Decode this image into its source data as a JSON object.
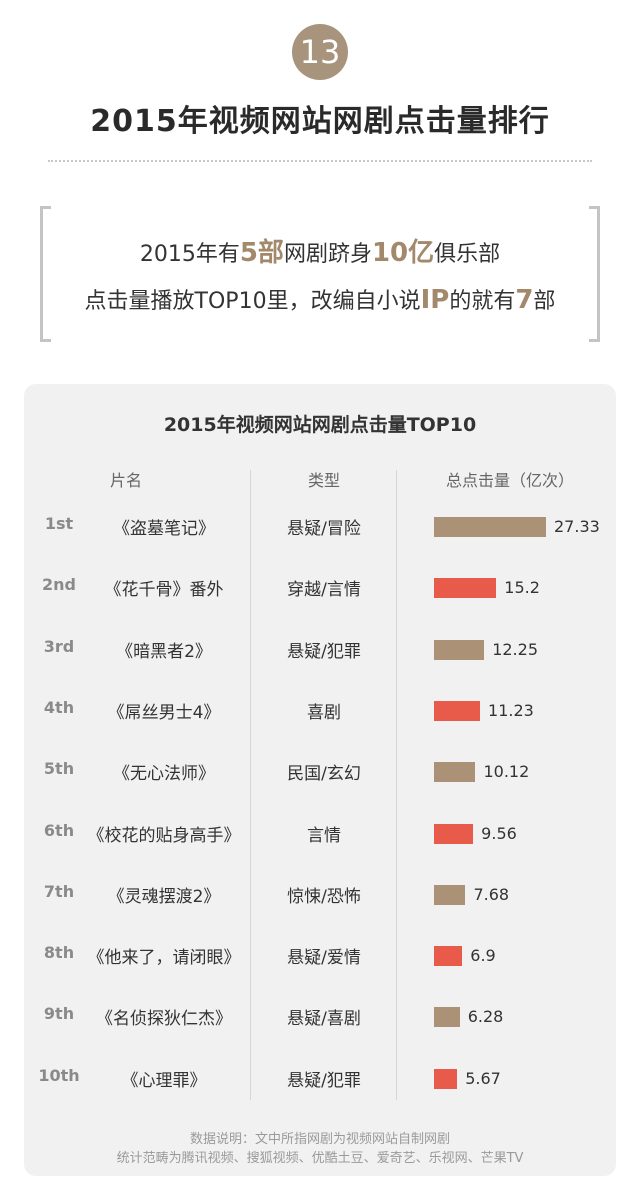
{
  "badge": "13",
  "title": "2015年视频网站网剧点击量排行",
  "quote": {
    "line1": {
      "pre": "2015年有",
      "hl1": "5部",
      "mid": "网剧跻身",
      "hl2": "10亿",
      "post": "俱乐部"
    },
    "line2": {
      "pre": "点击量播放TOP10里，改编自小说",
      "hl1": "IP",
      "mid": "的就有",
      "hl2": "7",
      "post": "部"
    }
  },
  "colors": {
    "brown": "#ab9276",
    "red": "#e85b4b",
    "highlight": "#a3896b"
  },
  "chart_data": {
    "type": "bar",
    "title": "2015年视频网站网剧点击量TOP10",
    "headers": {
      "name": "片名",
      "genre": "类型",
      "value": "总点击量（亿次）"
    },
    "rows": [
      {
        "rank": "1st",
        "name": "《盗墓笔记》",
        "genre": "悬疑/冒险",
        "value": 27.33,
        "label": "27.33",
        "color": "brown"
      },
      {
        "rank": "2nd",
        "name": "《花千骨》番外",
        "genre": "穿越/言情",
        "value": 15.2,
        "label": "15.2",
        "color": "red"
      },
      {
        "rank": "3rd",
        "name": "《暗黑者2》",
        "genre": "悬疑/犯罪",
        "value": 12.25,
        "label": "12.25",
        "color": "brown"
      },
      {
        "rank": "4th",
        "name": "《屌丝男士4》",
        "genre": "喜剧",
        "value": 11.23,
        "label": "11.23",
        "color": "red"
      },
      {
        "rank": "5th",
        "name": "《无心法师》",
        "genre": "民国/玄幻",
        "value": 10.12,
        "label": "10.12",
        "color": "brown"
      },
      {
        "rank": "6th",
        "name": "《校花的贴身高手》",
        "genre": "言情",
        "value": 9.56,
        "label": "9.56",
        "color": "red"
      },
      {
        "rank": "7th",
        "name": "《灵魂摆渡2》",
        "genre": "惊悚/恐怖",
        "value": 7.68,
        "label": "7.68",
        "color": "brown"
      },
      {
        "rank": "8th",
        "name": "《他来了，请闭眼》",
        "genre": "悬疑/爱情",
        "value": 6.9,
        "label": "6.9",
        "color": "red"
      },
      {
        "rank": "9th",
        "name": "《名侦探狄仁杰》",
        "genre": "悬疑/喜剧",
        "value": 6.28,
        "label": "6.28",
        "color": "brown"
      },
      {
        "rank": "10th",
        "name": "《心理罪》",
        "genre": "悬疑/犯罪",
        "value": 5.67,
        "label": "5.67",
        "color": "red"
      }
    ]
  },
  "footnote": {
    "line1": "数据说明：文中所指网剧为视频网站自制网剧",
    "line2": "统计范畴为腾讯视频、搜狐视频、优酷土豆、爱奇艺、乐视网、芒果TV"
  }
}
